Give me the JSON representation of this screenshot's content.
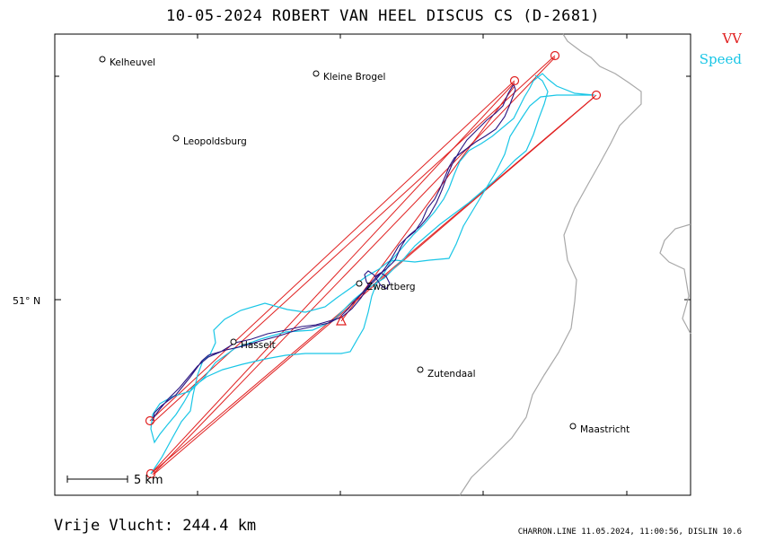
{
  "title": "10-05-2024   ROBERT VAN HEEL   DISCUS CS (D-2681)",
  "legend": {
    "vv": "VV",
    "speed": "Speed"
  },
  "colors": {
    "vv": "#e02020",
    "speed": "#19c6e6",
    "track": "#2a1480",
    "border": "#a8a8a8",
    "frame": "#000000"
  },
  "axis": {
    "lat_label": "51° N"
  },
  "places": [
    {
      "name": "Kelheuvel"
    },
    {
      "name": "Kleine Brogel"
    },
    {
      "name": "Leopoldsburg"
    },
    {
      "name": "Hasselt"
    },
    {
      "name": "Zwartberg"
    },
    {
      "name": "Zutendaal"
    },
    {
      "name": "Maastricht"
    }
  ],
  "scale": {
    "label": "5 km"
  },
  "footer": {
    "distance": "Vrije Vlucht:  244.4 km",
    "info": "CHARRON.LINE 11.05.2024, 11:00:56, DISLIN 10.6"
  }
}
